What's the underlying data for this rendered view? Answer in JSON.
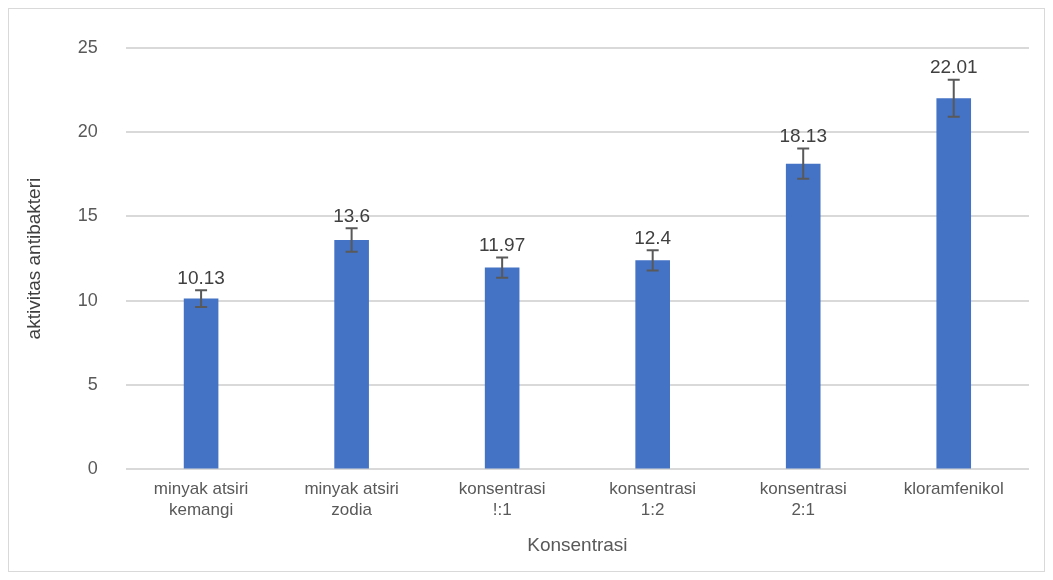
{
  "chart_data": {
    "type": "bar",
    "xlabel": "Konsentrasi",
    "ylabel": "aktivitas antibakteri",
    "categories": [
      "minyak atsiri kemangi",
      "minyak atsiri zodia",
      "konsentrasi !:1",
      "konsentrasi 1:2",
      "konsentrasi 2:1",
      "kloramfenikol"
    ],
    "values": [
      10.13,
      13.6,
      11.97,
      12.4,
      18.13,
      22.01
    ],
    "errors": [
      0.5,
      0.7,
      0.6,
      0.6,
      0.9,
      1.1
    ],
    "color": "#4472c4",
    "ylim": [
      0,
      25
    ],
    "yticks": [
      0,
      5,
      10,
      15,
      20,
      25
    ],
    "grid": "y",
    "data_labels": true
  }
}
